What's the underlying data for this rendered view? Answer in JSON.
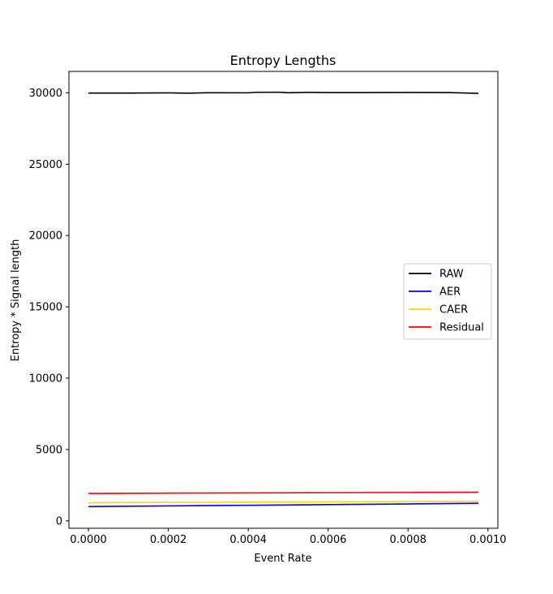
{
  "chart_data": {
    "type": "line",
    "title": "Entropy Lengths",
    "xlabel": "Event Rate",
    "ylabel": "Entropy * Signal length",
    "xlim": [
      -4.88e-05,
      0.0010248
    ],
    "ylim": [
      -520,
      31500
    ],
    "xticks": [
      0.0,
      0.0002,
      0.0004,
      0.0006,
      0.0008,
      0.001
    ],
    "xtick_labels": [
      "0.0000",
      "0.0002",
      "0.0004",
      "0.0006",
      "0.0008",
      "0.0010"
    ],
    "yticks": [
      0,
      5000,
      10000,
      15000,
      20000,
      25000,
      30000
    ],
    "ytick_labels": [
      "0",
      "5000",
      "10000",
      "15000",
      "20000",
      "25000",
      "30000"
    ],
    "legend_position": "center-right",
    "grid": false,
    "series": [
      {
        "name": "RAW",
        "color": "#000000",
        "x": [
          0.0,
          0.0001,
          0.0002,
          0.00025,
          0.0003,
          0.0004,
          0.00042,
          0.00048,
          0.0005,
          0.00055,
          0.0006,
          0.0007,
          0.0008,
          0.0009,
          0.000976
        ],
        "y": [
          29985,
          29980,
          29995,
          29975,
          30005,
          30000,
          30035,
          30040,
          30005,
          30030,
          30015,
          30020,
          30025,
          30015,
          29960
        ]
      },
      {
        "name": "AER",
        "color": "#0000ff",
        "x": [
          0.0,
          0.0002,
          0.0004,
          0.0006,
          0.0008,
          0.000976
        ],
        "y": [
          1000,
          1050,
          1090,
          1140,
          1185,
          1230
        ]
      },
      {
        "name": "CAER",
        "color": "#ffd700",
        "x": [
          0.0,
          0.0002,
          0.0004,
          0.0006,
          0.0008,
          0.000976
        ],
        "y": [
          1270,
          1290,
          1310,
          1330,
          1350,
          1375
        ]
      },
      {
        "name": "Residual",
        "color": "#ff0000",
        "x": [
          0.0,
          0.0002,
          0.0004,
          0.0006,
          0.0008,
          0.000976
        ],
        "y": [
          1920,
          1945,
          1960,
          1975,
          1990,
          2005
        ]
      }
    ]
  }
}
